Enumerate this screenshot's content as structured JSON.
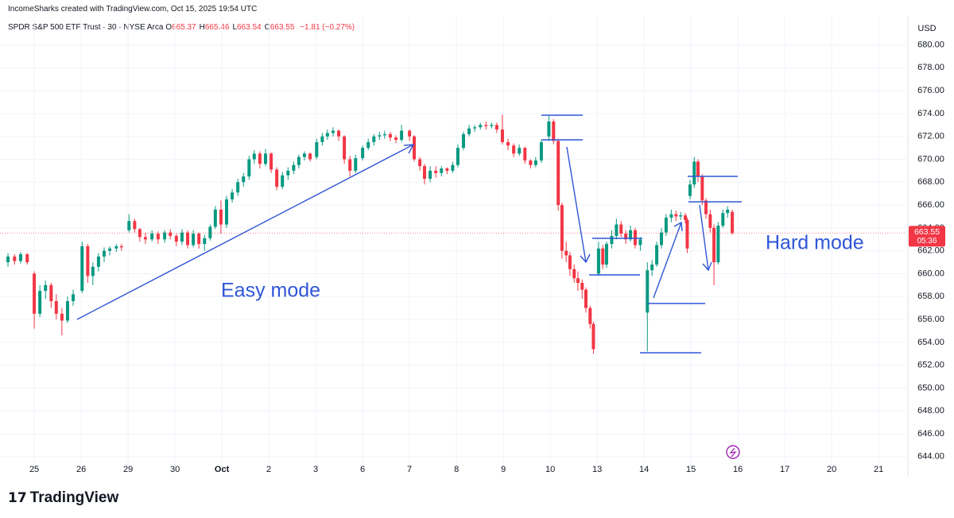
{
  "header": {
    "credit": "IncomeSharks created with TradingView.com, Oct 15, 2025 19:54 UTC",
    "symbol": "SPDR S&P 500 ETF Trust · 30 · NYSE Arca",
    "ohlc": [
      {
        "label": "O",
        "value": 665.37
      },
      {
        "label": "H",
        "value": 665.46
      },
      {
        "label": "L",
        "value": 663.54
      },
      {
        "label": "C",
        "value": 663.55
      }
    ],
    "change": "−1.81 (−0.27%)"
  },
  "chart_data": {
    "type": "candlestick",
    "currency": "USD",
    "up_color": "#089981",
    "down_color": "#f23645",
    "ylim": [
      642.6,
      680.8
    ],
    "yticks": [
      {
        "value": 644,
        "label": "644.00"
      },
      {
        "value": 646,
        "label": "646.00"
      },
      {
        "value": 648,
        "label": "648.00"
      },
      {
        "value": 650,
        "label": "650.00"
      },
      {
        "value": 652,
        "label": "652.00"
      },
      {
        "value": 654,
        "label": "654.00"
      },
      {
        "value": 656,
        "label": "656.00"
      },
      {
        "value": 658,
        "label": "658.00"
      },
      {
        "value": 660,
        "label": "660.00"
      },
      {
        "value": 662,
        "label": "662.00"
      },
      {
        "value": 664,
        "label": "664.00"
      },
      {
        "value": 666,
        "label": "666.00"
      },
      {
        "value": 668,
        "label": "668.00"
      },
      {
        "value": 670,
        "label": "670.00"
      },
      {
        "value": 672,
        "label": "672.00"
      },
      {
        "value": 674,
        "label": "674.00"
      },
      {
        "value": 676,
        "label": "676.00"
      },
      {
        "value": 678,
        "label": "678.00"
      },
      {
        "value": 680,
        "label": "680.00"
      }
    ],
    "xlim": [
      -0.73,
      18.59
    ],
    "xticks": [
      {
        "value": 0,
        "label": "25"
      },
      {
        "value": 1,
        "label": "26"
      },
      {
        "value": 2,
        "label": "29"
      },
      {
        "value": 3,
        "label": "30"
      },
      {
        "value": 4,
        "label": "Oct"
      },
      {
        "value": 5,
        "label": "2"
      },
      {
        "value": 6,
        "label": "3"
      },
      {
        "value": 7,
        "label": "6"
      },
      {
        "value": 8,
        "label": "7"
      },
      {
        "value": 9,
        "label": "8"
      },
      {
        "value": 10,
        "label": "9"
      },
      {
        "value": 11,
        "label": "10"
      },
      {
        "value": 12,
        "label": "13"
      },
      {
        "value": 13,
        "label": "14"
      },
      {
        "value": 14,
        "label": "15"
      },
      {
        "value": 15,
        "label": "16"
      },
      {
        "value": 16,
        "label": "17"
      },
      {
        "value": 17,
        "label": "20"
      },
      {
        "value": 18,
        "label": "21"
      }
    ],
    "grid": true,
    "countdown": "05:36",
    "annotations": [
      "Easy mode",
      "Hard mode"
    ],
    "candles": [
      [
        -0.56,
        661.0,
        661.8,
        660.6,
        661.5
      ],
      [
        -0.42,
        661.5,
        661.7,
        660.8,
        661.1
      ],
      [
        -0.29,
        661.1,
        661.9,
        660.9,
        661.7
      ],
      [
        -0.15,
        661.7,
        661.8,
        660.8,
        661.0
      ],
      [
        0,
        660.0,
        660.2,
        655.2,
        656.5
      ],
      [
        0.12,
        656.5,
        659.0,
        656.2,
        658.5
      ],
      [
        0.24,
        658.5,
        659.4,
        657.8,
        659.0
      ],
      [
        0.36,
        659.0,
        659.2,
        657.0,
        657.6
      ],
      [
        0.47,
        657.6,
        658.2,
        656.0,
        656.5
      ],
      [
        0.59,
        656.5,
        657.0,
        654.6,
        655.9
      ],
      [
        0.71,
        655.9,
        658.0,
        655.7,
        657.6
      ],
      [
        0.83,
        657.6,
        658.6,
        657.2,
        658.2
      ],
      [
        1.02,
        658.5,
        662.8,
        658.3,
        662.4
      ],
      [
        1.14,
        662.4,
        662.6,
        659.2,
        659.8
      ],
      [
        1.25,
        659.8,
        661.0,
        659.0,
        660.6
      ],
      [
        1.37,
        660.6,
        661.8,
        660.2,
        661.5
      ],
      [
        1.49,
        661.5,
        662.3,
        661.0,
        662.0
      ],
      [
        1.61,
        662.0,
        662.4,
        661.6,
        662.2
      ],
      [
        1.75,
        662.2,
        662.6,
        661.9,
        662.4
      ],
      [
        1.86,
        662.4,
        662.6,
        662.0,
        662.3
      ],
      [
        2.02,
        663.8,
        665.2,
        663.6,
        664.6
      ],
      [
        2.14,
        664.6,
        664.8,
        663.6,
        663.9
      ],
      [
        2.25,
        663.9,
        664.0,
        662.8,
        663.2
      ],
      [
        2.37,
        663.2,
        663.6,
        662.6,
        663.0
      ],
      [
        2.51,
        663.0,
        663.8,
        662.8,
        663.5
      ],
      [
        2.64,
        663.5,
        663.7,
        662.6,
        663.0
      ],
      [
        2.78,
        663.0,
        663.8,
        662.7,
        663.6
      ],
      [
        2.9,
        663.6,
        663.9,
        663.0,
        663.3
      ],
      [
        3.03,
        663.3,
        663.5,
        662.4,
        662.8
      ],
      [
        3.15,
        662.8,
        663.9,
        662.5,
        663.6
      ],
      [
        3.27,
        663.6,
        663.8,
        662.2,
        662.5
      ],
      [
        3.39,
        662.5,
        663.8,
        662.3,
        663.5
      ],
      [
        3.51,
        663.5,
        663.6,
        662.2,
        662.6
      ],
      [
        3.63,
        662.6,
        663.4,
        662.0,
        663.1
      ],
      [
        3.75,
        663.1,
        664.3,
        662.9,
        664.1
      ],
      [
        3.86,
        664.1,
        665.9,
        663.9,
        665.6
      ],
      [
        3.98,
        665.6,
        666.4,
        663.5,
        664.3
      ],
      [
        4.1,
        664.3,
        666.8,
        664.0,
        666.5
      ],
      [
        4.22,
        666.5,
        667.4,
        666.2,
        667.1
      ],
      [
        4.34,
        667.1,
        668.3,
        666.8,
        668.0
      ],
      [
        4.46,
        668.0,
        668.8,
        667.6,
        668.5
      ],
      [
        4.58,
        668.5,
        670.3,
        668.2,
        670.0
      ],
      [
        4.69,
        670.0,
        670.8,
        669.6,
        670.5
      ],
      [
        4.81,
        670.5,
        670.7,
        669.2,
        669.6
      ],
      [
        4.93,
        669.6,
        670.9,
        669.4,
        670.5
      ],
      [
        5.05,
        670.5,
        670.6,
        668.8,
        669.1
      ],
      [
        5.17,
        669.1,
        669.3,
        667.3,
        667.6
      ],
      [
        5.29,
        667.6,
        668.9,
        667.4,
        668.6
      ],
      [
        5.41,
        668.6,
        669.3,
        668.2,
        669.0
      ],
      [
        5.53,
        669.0,
        669.8,
        668.7,
        669.5
      ],
      [
        5.64,
        669.5,
        670.4,
        669.2,
        670.2
      ],
      [
        5.76,
        670.2,
        670.7,
        669.9,
        670.5
      ],
      [
        5.88,
        670.5,
        670.6,
        669.8,
        670.0
      ],
      [
        6.02,
        670.2,
        671.8,
        670.0,
        671.5
      ],
      [
        6.14,
        671.5,
        672.3,
        671.2,
        672.0
      ],
      [
        6.25,
        672.0,
        672.6,
        671.7,
        672.3
      ],
      [
        6.37,
        672.3,
        672.8,
        672.0,
        672.5
      ],
      [
        6.49,
        672.5,
        672.6,
        671.6,
        672.0
      ],
      [
        6.61,
        672.0,
        672.1,
        669.6,
        670.0
      ],
      [
        6.73,
        670.0,
        670.3,
        668.5,
        669.0
      ],
      [
        6.85,
        669.0,
        670.4,
        668.8,
        670.1
      ],
      [
        7.0,
        670.1,
        671.2,
        669.9,
        671.0
      ],
      [
        7.12,
        671.0,
        671.8,
        670.8,
        671.5
      ],
      [
        7.24,
        671.5,
        672.2,
        671.2,
        672.0
      ],
      [
        7.36,
        672.0,
        672.4,
        671.7,
        672.1
      ],
      [
        7.47,
        672.1,
        672.5,
        671.8,
        672.2
      ],
      [
        7.59,
        672.2,
        672.4,
        671.6,
        671.9
      ],
      [
        7.71,
        671.9,
        672.1,
        671.4,
        671.7
      ],
      [
        7.83,
        671.7,
        673.0,
        671.5,
        672.5
      ],
      [
        8.0,
        672.5,
        672.6,
        671.6,
        672.0
      ],
      [
        8.1,
        672.0,
        672.1,
        669.8,
        670.0
      ],
      [
        8.22,
        670.0,
        670.2,
        669.0,
        669.4
      ],
      [
        8.32,
        669.4,
        669.6,
        667.8,
        668.3
      ],
      [
        8.44,
        668.3,
        669.4,
        668.0,
        669.0
      ],
      [
        8.56,
        669.0,
        669.4,
        668.4,
        668.8
      ],
      [
        8.68,
        668.8,
        669.4,
        668.5,
        669.2
      ],
      [
        8.8,
        669.2,
        669.3,
        668.7,
        669.0
      ],
      [
        8.92,
        669.0,
        669.8,
        668.8,
        669.5
      ],
      [
        9.03,
        669.5,
        671.3,
        669.3,
        671.0
      ],
      [
        9.15,
        671.0,
        672.4,
        670.8,
        672.2
      ],
      [
        9.27,
        672.2,
        673.0,
        672.0,
        672.7
      ],
      [
        9.39,
        672.7,
        673.0,
        672.4,
        672.8
      ],
      [
        9.51,
        672.8,
        673.2,
        672.6,
        673.0
      ],
      [
        9.63,
        673.0,
        673.3,
        672.6,
        672.9
      ],
      [
        9.75,
        672.9,
        673.2,
        672.7,
        673.0
      ],
      [
        9.86,
        673.0,
        673.2,
        672.3,
        672.6
      ],
      [
        9.98,
        672.6,
        673.9,
        671.3,
        671.5
      ],
      [
        10.1,
        671.5,
        671.8,
        670.8,
        671.2
      ],
      [
        10.22,
        671.2,
        671.4,
        670.2,
        670.5
      ],
      [
        10.34,
        670.5,
        671.3,
        670.3,
        671.0
      ],
      [
        10.46,
        671.0,
        671.1,
        669.6,
        669.9
      ],
      [
        10.58,
        669.9,
        670.0,
        669.2,
        669.5
      ],
      [
        10.69,
        669.5,
        670.2,
        669.3,
        669.9
      ],
      [
        10.81,
        669.9,
        671.7,
        669.7,
        671.5
      ],
      [
        10.97,
        672.0,
        673.8,
        671.6,
        673.3
      ],
      [
        11.07,
        673.3,
        673.5,
        671.3,
        671.6
      ],
      [
        11.17,
        671.6,
        671.8,
        665.5,
        666.0
      ],
      [
        11.25,
        666.0,
        666.2,
        661.3,
        662.0
      ],
      [
        11.34,
        662.0,
        662.8,
        661.0,
        661.6
      ],
      [
        11.42,
        661.6,
        661.9,
        659.8,
        660.4
      ],
      [
        11.51,
        660.4,
        660.8,
        659.2,
        659.6
      ],
      [
        11.59,
        659.6,
        660.2,
        658.5,
        659.2
      ],
      [
        11.68,
        659.2,
        659.5,
        657.8,
        658.6
      ],
      [
        11.76,
        658.6,
        658.8,
        656.6,
        657.0
      ],
      [
        11.85,
        657.0,
        657.2,
        655.2,
        655.6
      ],
      [
        11.92,
        655.6,
        655.8,
        653.0,
        653.4
      ],
      [
        12.03,
        660.0,
        662.8,
        659.8,
        662.2
      ],
      [
        12.12,
        662.2,
        662.5,
        660.4,
        660.8
      ],
      [
        12.2,
        660.8,
        662.8,
        660.5,
        662.6
      ],
      [
        12.31,
        662.6,
        663.8,
        662.2,
        663.3
      ],
      [
        12.41,
        663.3,
        664.8,
        663.0,
        664.3
      ],
      [
        12.51,
        664.3,
        664.6,
        663.2,
        663.5
      ],
      [
        12.61,
        663.5,
        663.8,
        662.6,
        663.0
      ],
      [
        12.71,
        663.0,
        664.2,
        662.8,
        663.8
      ],
      [
        12.81,
        663.8,
        664.0,
        662.2,
        662.5
      ],
      [
        12.92,
        662.5,
        663.2,
        662.0,
        663.0
      ],
      [
        13.07,
        656.6,
        661.0,
        653.2,
        660.3
      ],
      [
        13.17,
        660.3,
        661.2,
        659.8,
        660.8
      ],
      [
        13.27,
        660.8,
        662.8,
        660.6,
        662.5
      ],
      [
        13.37,
        662.5,
        664.0,
        662.2,
        663.6
      ],
      [
        13.47,
        663.6,
        665.2,
        663.3,
        664.9
      ],
      [
        13.58,
        664.9,
        665.6,
        664.5,
        665.2
      ],
      [
        13.68,
        665.2,
        665.5,
        664.6,
        665.0
      ],
      [
        13.78,
        665.0,
        665.4,
        664.7,
        665.1
      ],
      [
        13.88,
        665.1,
        665.3,
        664.4,
        664.7
      ],
      [
        13.92,
        664.7,
        664.9,
        661.8,
        662.2
      ],
      [
        13.98,
        666.8,
        668.2,
        666.5,
        667.8
      ],
      [
        14.07,
        667.8,
        670.2,
        667.5,
        669.8
      ],
      [
        14.15,
        669.8,
        670.0,
        668.0,
        668.5
      ],
      [
        14.24,
        668.5,
        668.7,
        666.0,
        666.4
      ],
      [
        14.32,
        666.4,
        666.6,
        664.8,
        665.2
      ],
      [
        14.41,
        665.2,
        665.6,
        663.6,
        664.0
      ],
      [
        14.49,
        664.0,
        664.3,
        659.0,
        661.0
      ],
      [
        14.58,
        661.0,
        664.5,
        660.8,
        664.2
      ],
      [
        14.68,
        664.2,
        665.6,
        664.0,
        665.3
      ],
      [
        14.78,
        665.3,
        665.9,
        664.9,
        665.6
      ],
      [
        14.88,
        665.4,
        665.6,
        663.4,
        663.55
      ]
    ]
  },
  "footer": {
    "logo": "TradingView"
  }
}
